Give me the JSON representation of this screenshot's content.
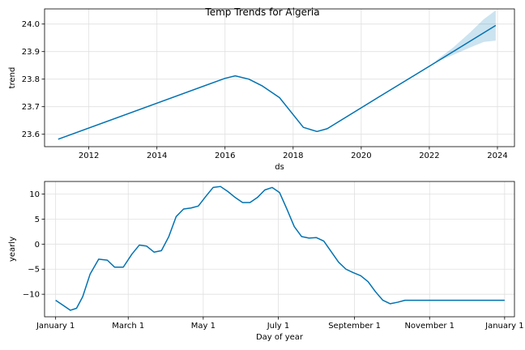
{
  "figure": {
    "title": "Temp Trends for Algeria"
  },
  "chart_data": [
    {
      "type": "line",
      "panel": "trend",
      "xlabel": "ds",
      "ylabel": "trend",
      "xlim": [
        2010.7,
        2024.5
      ],
      "ylim": [
        23.555,
        24.055
      ],
      "grid": true,
      "xticks": [
        2012,
        2014,
        2016,
        2018,
        2020,
        2022,
        2024
      ],
      "xtick_labels": [
        "2012",
        "2014",
        "2016",
        "2018",
        "2020",
        "2022",
        "2024"
      ],
      "yticks": [
        23.6,
        23.7,
        23.8,
        23.9,
        24.0
      ],
      "ytick_labels": [
        "23.6",
        "23.7",
        "23.8",
        "23.9",
        "24.0"
      ],
      "line_color": "#0072B2",
      "band_color": "#0072B2",
      "series": [
        {
          "x": [
            2011.1,
            2016.0,
            2016.3,
            2016.7,
            2017.1,
            2017.6,
            2018.3,
            2018.7,
            2019.0,
            2020.5,
            2022.0,
            2023.95
          ],
          "y": [
            23.582,
            23.803,
            23.812,
            23.8,
            23.775,
            23.733,
            23.625,
            23.61,
            23.62,
            23.734,
            23.847,
            23.995
          ]
        }
      ],
      "uncertainty_band": {
        "x": [
          2022.2,
          2022.7,
          2023.2,
          2023.6,
          2023.95
        ],
        "upper": [
          23.868,
          23.915,
          23.97,
          24.018,
          24.05
        ],
        "lower": [
          23.862,
          23.888,
          23.915,
          23.935,
          23.94
        ]
      }
    },
    {
      "type": "line",
      "panel": "yearly",
      "xlabel": "Day of year",
      "ylabel": "yearly",
      "xlim": [
        -9,
        373
      ],
      "ylim": [
        -14.5,
        12.5
      ],
      "grid": true,
      "xticks": [
        0,
        59,
        120,
        181,
        243,
        304,
        365
      ],
      "xtick_labels": [
        "January 1",
        "March 1",
        "May 1",
        "July 1",
        "September 1",
        "November 1",
        "January 1"
      ],
      "yticks": [
        -10,
        -5,
        0,
        5,
        10
      ],
      "ytick_labels": [
        "−10",
        "−5",
        "0",
        "5",
        "10"
      ],
      "line_color": "#0072B2",
      "series": [
        {
          "x": [
            0,
            6,
            12,
            17,
            22,
            28,
            35,
            42,
            48,
            55,
            62,
            68,
            74,
            80,
            86,
            92,
            98,
            104,
            110,
            116,
            122,
            128,
            134,
            140,
            146,
            152,
            158,
            164,
            170,
            176,
            182,
            188,
            194,
            200,
            206,
            212,
            218,
            224,
            230,
            236,
            242,
            248,
            254,
            260,
            266,
            272,
            278,
            284,
            290,
            296,
            302,
            308,
            314,
            320,
            326,
            332,
            338,
            344,
            350,
            356,
            362,
            365
          ],
          "y": [
            -11.2,
            -12.2,
            -13.2,
            -12.8,
            -10.5,
            -6.0,
            -3.0,
            -3.2,
            -4.6,
            -4.6,
            -2.0,
            -0.2,
            -0.4,
            -1.6,
            -1.3,
            1.5,
            5.5,
            7.0,
            7.2,
            7.6,
            9.5,
            11.3,
            11.5,
            10.5,
            9.3,
            8.3,
            8.3,
            9.3,
            10.8,
            11.3,
            10.3,
            7.0,
            3.5,
            1.5,
            1.2,
            1.3,
            0.6,
            -1.5,
            -3.6,
            -5.0,
            -5.7,
            -6.3,
            -7.5,
            -9.5,
            -11.2,
            -11.9,
            -11.6,
            -11.2,
            -11.2,
            -11.2,
            -11.2,
            -11.2,
            -11.2,
            -11.2,
            -11.2,
            -11.2,
            -11.2,
            -11.2,
            -11.2,
            -11.2,
            -11.2,
            -11.2
          ]
        }
      ]
    }
  ]
}
